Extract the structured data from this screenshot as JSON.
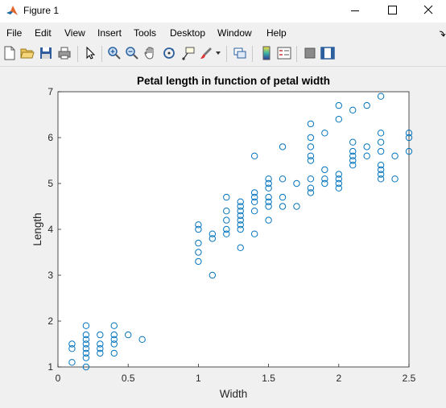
{
  "window": {
    "title": "Figure 1"
  },
  "menu": [
    "File",
    "Edit",
    "View",
    "Insert",
    "Tools",
    "Desktop",
    "Window",
    "Help"
  ],
  "toolbar_icons": [
    "new-figure-icon",
    "open-file-icon",
    "save-icon",
    "print-icon",
    "pointer-icon",
    "zoom-in-icon",
    "zoom-out-icon",
    "pan-icon",
    "rotate-3d-icon",
    "data-cursor-icon",
    "brush-icon",
    "link-plot-icon",
    "colorbar-icon",
    "legend-icon",
    "hide-plot-tools-icon",
    "show-plot-tools-icon"
  ],
  "chart_data": {
    "type": "scatter",
    "title": "Petal length in function of petal width",
    "xlabel": "Width",
    "ylabel": "Length",
    "xlim": [
      0,
      2.5
    ],
    "ylim": [
      1,
      7
    ],
    "xticks": [
      "0",
      "0.5",
      "1",
      "1.5",
      "2",
      "2.5"
    ],
    "yticks": [
      "1",
      "2",
      "3",
      "4",
      "5",
      "6",
      "7"
    ],
    "marker_color": "#0072bd",
    "points": [
      [
        0.1,
        1.1
      ],
      [
        0.1,
        1.4
      ],
      [
        0.1,
        1.5
      ],
      [
        0.2,
        1.0
      ],
      [
        0.2,
        1.2
      ],
      [
        0.2,
        1.3
      ],
      [
        0.2,
        1.4
      ],
      [
        0.2,
        1.5
      ],
      [
        0.2,
        1.6
      ],
      [
        0.2,
        1.7
      ],
      [
        0.2,
        1.9
      ],
      [
        0.3,
        1.3
      ],
      [
        0.3,
        1.4
      ],
      [
        0.3,
        1.5
      ],
      [
        0.3,
        1.7
      ],
      [
        0.4,
        1.3
      ],
      [
        0.4,
        1.5
      ],
      [
        0.4,
        1.6
      ],
      [
        0.4,
        1.7
      ],
      [
        0.4,
        1.9
      ],
      [
        0.5,
        1.7
      ],
      [
        0.6,
        1.6
      ],
      [
        1.0,
        3.3
      ],
      [
        1.0,
        3.5
      ],
      [
        1.0,
        3.7
      ],
      [
        1.0,
        4.0
      ],
      [
        1.0,
        4.1
      ],
      [
        1.1,
        3.0
      ],
      [
        1.1,
        3.8
      ],
      [
        1.1,
        3.9
      ],
      [
        1.2,
        3.9
      ],
      [
        1.2,
        4.0
      ],
      [
        1.2,
        4.2
      ],
      [
        1.2,
        4.4
      ],
      [
        1.2,
        4.7
      ],
      [
        1.3,
        3.6
      ],
      [
        1.3,
        4.0
      ],
      [
        1.3,
        4.1
      ],
      [
        1.3,
        4.2
      ],
      [
        1.3,
        4.3
      ],
      [
        1.3,
        4.4
      ],
      [
        1.3,
        4.5
      ],
      [
        1.3,
        4.6
      ],
      [
        1.4,
        3.9
      ],
      [
        1.4,
        4.4
      ],
      [
        1.4,
        4.6
      ],
      [
        1.4,
        4.7
      ],
      [
        1.4,
        4.8
      ],
      [
        1.4,
        5.6
      ],
      [
        1.5,
        4.2
      ],
      [
        1.5,
        4.5
      ],
      [
        1.5,
        4.6
      ],
      [
        1.5,
        4.7
      ],
      [
        1.5,
        4.9
      ],
      [
        1.5,
        5.0
      ],
      [
        1.5,
        5.1
      ],
      [
        1.6,
        4.5
      ],
      [
        1.6,
        4.7
      ],
      [
        1.6,
        5.1
      ],
      [
        1.6,
        5.8
      ],
      [
        1.7,
        4.5
      ],
      [
        1.7,
        5.0
      ],
      [
        1.8,
        4.8
      ],
      [
        1.8,
        4.9
      ],
      [
        1.8,
        5.1
      ],
      [
        1.8,
        5.5
      ],
      [
        1.8,
        5.6
      ],
      [
        1.8,
        5.8
      ],
      [
        1.8,
        6.0
      ],
      [
        1.8,
        6.3
      ],
      [
        1.9,
        5.0
      ],
      [
        1.9,
        5.1
      ],
      [
        1.9,
        5.3
      ],
      [
        1.9,
        6.1
      ],
      [
        2.0,
        4.9
      ],
      [
        2.0,
        5.0
      ],
      [
        2.0,
        5.1
      ],
      [
        2.0,
        5.2
      ],
      [
        2.0,
        6.4
      ],
      [
        2.0,
        6.7
      ],
      [
        2.1,
        5.4
      ],
      [
        2.1,
        5.5
      ],
      [
        2.1,
        5.6
      ],
      [
        2.1,
        5.7
      ],
      [
        2.1,
        5.9
      ],
      [
        2.1,
        6.6
      ],
      [
        2.2,
        5.6
      ],
      [
        2.2,
        5.8
      ],
      [
        2.2,
        6.7
      ],
      [
        2.3,
        5.1
      ],
      [
        2.3,
        5.2
      ],
      [
        2.3,
        5.3
      ],
      [
        2.3,
        5.4
      ],
      [
        2.3,
        5.7
      ],
      [
        2.3,
        5.9
      ],
      [
        2.3,
        6.1
      ],
      [
        2.3,
        6.9
      ],
      [
        2.4,
        5.1
      ],
      [
        2.4,
        5.6
      ],
      [
        2.5,
        5.7
      ],
      [
        2.5,
        6.0
      ],
      [
        2.5,
        6.1
      ]
    ]
  }
}
